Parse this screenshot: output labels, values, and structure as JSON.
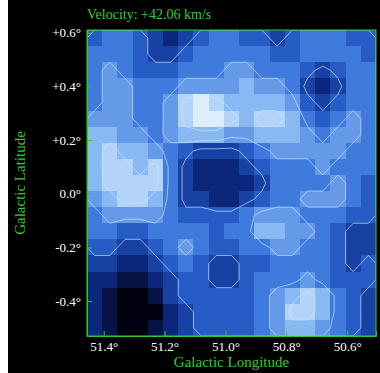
{
  "chart_data": {
    "type": "heatmap",
    "title": "Velocity: +42.06 km/s",
    "x_label": "Galactic Longitude",
    "y_label": "Galactic Latitude",
    "xlim": [
      51.455,
      50.505
    ],
    "ylim": [
      -0.53,
      0.61
    ],
    "xticks": [
      {
        "value": 51.4,
        "label": "51.4°"
      },
      {
        "value": 51.2,
        "label": "51.2°"
      },
      {
        "value": 51.0,
        "label": "51.0°"
      },
      {
        "value": 50.8,
        "label": "50.8°"
      },
      {
        "value": 50.6,
        "label": "50.6°"
      }
    ],
    "yticks": [
      {
        "value": 0.6,
        "label": "+0.6°"
      },
      {
        "value": 0.4,
        "label": "+0.4°"
      },
      {
        "value": 0.2,
        "label": "+0.2°"
      },
      {
        "value": 0.0,
        "label": "0.0°"
      },
      {
        "value": -0.2,
        "label": "-0.2°"
      },
      {
        "value": -0.4,
        "label": "-0.4°"
      }
    ],
    "x": [
      51.43,
      51.38,
      51.33,
      51.28,
      51.23,
      51.18,
      51.13,
      51.08,
      51.03,
      50.98,
      50.93,
      50.88,
      50.83,
      50.78,
      50.73,
      50.68,
      50.63,
      50.58,
      50.53
    ],
    "y": [
      0.58,
      0.52,
      0.46,
      0.4,
      0.34,
      0.28,
      0.22,
      0.16,
      0.1,
      0.04,
      -0.02,
      -0.08,
      -0.14,
      -0.2,
      -0.26,
      -0.32,
      -0.38,
      -0.44,
      -0.5
    ],
    "values": [
      [
        4,
        5,
        5,
        4,
        3,
        2,
        3,
        4,
        5,
        5,
        4,
        4,
        3,
        4,
        5,
        5,
        5,
        4,
        4
      ],
      [
        5,
        5,
        5,
        4,
        3,
        3,
        4,
        5,
        5,
        5,
        5,
        5,
        4,
        4,
        5,
        5,
        5,
        5,
        4
      ],
      [
        5,
        6,
        5,
        4,
        4,
        4,
        5,
        5,
        5,
        6,
        6,
        5,
        5,
        5,
        4,
        3,
        4,
        5,
        5
      ],
      [
        5,
        6,
        6,
        5,
        5,
        5,
        6,
        6,
        6,
        6,
        7,
        6,
        6,
        5,
        3,
        2,
        3,
        5,
        5
      ],
      [
        5,
        6,
        6,
        5,
        5,
        6,
        8,
        9,
        8,
        7,
        7,
        7,
        7,
        6,
        4,
        3,
        4,
        5,
        5
      ],
      [
        6,
        6,
        6,
        5,
        5,
        6,
        8,
        9,
        9,
        8,
        7,
        8,
        8,
        7,
        5,
        4,
        5,
        6,
        5
      ],
      [
        7,
        7,
        6,
        6,
        5,
        6,
        7,
        7,
        7,
        6,
        6,
        7,
        7,
        7,
        6,
        5,
        6,
        6,
        5
      ],
      [
        7,
        8,
        7,
        7,
        6,
        5,
        4,
        3,
        3,
        3,
        4,
        5,
        6,
        6,
        6,
        6,
        6,
        5,
        5
      ],
      [
        7,
        8,
        8,
        7,
        8,
        5,
        3,
        2,
        2,
        2,
        3,
        4,
        5,
        5,
        5,
        6,
        5,
        5,
        5
      ],
      [
        7,
        8,
        8,
        8,
        8,
        5,
        3,
        2,
        2,
        2,
        2,
        3,
        5,
        5,
        5,
        5,
        6,
        5,
        4
      ],
      [
        6,
        7,
        8,
        8,
        7,
        5,
        3,
        3,
        2,
        2,
        3,
        4,
        5,
        5,
        6,
        6,
        6,
        5,
        4
      ],
      [
        5,
        6,
        6,
        6,
        6,
        5,
        4,
        4,
        4,
        4,
        5,
        6,
        6,
        6,
        5,
        5,
        5,
        4,
        4
      ],
      [
        5,
        5,
        4,
        4,
        5,
        5,
        5,
        5,
        4,
        5,
        5,
        7,
        7,
        6,
        6,
        5,
        4,
        3,
        3
      ],
      [
        4,
        4,
        3,
        3,
        4,
        5,
        6,
        5,
        4,
        4,
        5,
        5,
        6,
        6,
        5,
        5,
        4,
        3,
        3
      ],
      [
        3,
        3,
        2,
        2,
        3,
        4,
        5,
        4,
        3,
        3,
        4,
        4,
        5,
        5,
        5,
        5,
        4,
        3,
        4
      ],
      [
        2,
        2,
        1,
        1,
        2,
        3,
        4,
        4,
        3,
        3,
        4,
        5,
        5,
        5,
        6,
        5,
        4,
        4,
        4
      ],
      [
        2,
        1,
        0,
        0,
        1,
        3,
        4,
        4,
        4,
        4,
        4,
        5,
        6,
        7,
        8,
        7,
        5,
        4,
        3
      ],
      [
        2,
        1,
        0,
        0,
        0,
        2,
        3,
        4,
        4,
        4,
        4,
        5,
        6,
        8,
        8,
        7,
        5,
        4,
        3
      ],
      [
        2,
        1,
        0,
        0,
        1,
        2,
        3,
        4,
        4,
        4,
        4,
        5,
        6,
        7,
        7,
        6,
        5,
        4,
        3
      ]
    ],
    "contour_levels": [
      3.5,
      5.5,
      7.5
    ]
  }
}
